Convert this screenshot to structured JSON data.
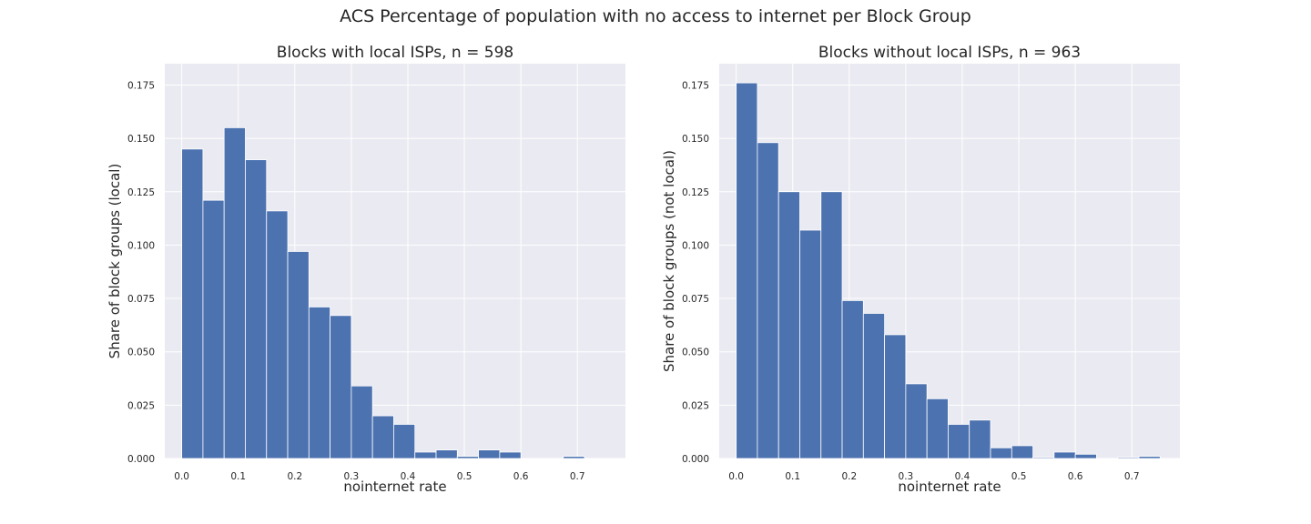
{
  "figure": {
    "suptitle": "ACS Percentage of population with no access to internet per Block Group"
  },
  "chart_data": [
    {
      "type": "bar",
      "title": "Blocks with local ISPs, n = 598",
      "xlabel": "nointernet rate",
      "ylabel": "Share of block groups (local)",
      "bin_width": 0.0375,
      "bin_start": 0.0,
      "values": [
        0.145,
        0.121,
        0.155,
        0.14,
        0.116,
        0.097,
        0.071,
        0.067,
        0.034,
        0.02,
        0.016,
        0.003,
        0.004,
        0.001,
        0.004,
        0.003,
        0.0,
        0.0,
        0.001,
        0.0
      ],
      "xlim": [
        -0.03,
        0.785
      ],
      "ylim": [
        0,
        0.185
      ],
      "xticks": [
        0.0,
        0.1,
        0.2,
        0.3,
        0.4,
        0.5,
        0.6,
        0.7
      ],
      "xtick_labels": [
        "0.0",
        "0.1",
        "0.2",
        "0.3",
        "0.4",
        "0.5",
        "0.6",
        "0.7"
      ],
      "yticks": [
        0.0,
        0.025,
        0.05,
        0.075,
        0.1,
        0.125,
        0.15,
        0.175
      ],
      "ytick_labels": [
        "0.000",
        "0.025",
        "0.050",
        "0.075",
        "0.100",
        "0.125",
        "0.150",
        "0.175"
      ],
      "grid": true,
      "bar_color": "#4c72b0",
      "background": "#eaeaf2"
    },
    {
      "type": "bar",
      "title": "Blocks without local ISPs, n = 963",
      "xlabel": "nointernet rate",
      "ylabel": "Share of block groups (not local)",
      "bin_width": 0.0375,
      "bin_start": 0.0,
      "values": [
        0.176,
        0.148,
        0.125,
        0.107,
        0.125,
        0.074,
        0.068,
        0.058,
        0.035,
        0.028,
        0.016,
        0.018,
        0.005,
        0.006,
        0.0005,
        0.003,
        0.002,
        0.0,
        0.0005,
        0.001
      ],
      "xlim": [
        -0.03,
        0.785
      ],
      "ylim": [
        0,
        0.185
      ],
      "xticks": [
        0.0,
        0.1,
        0.2,
        0.3,
        0.4,
        0.5,
        0.6,
        0.7
      ],
      "xtick_labels": [
        "0.0",
        "0.1",
        "0.2",
        "0.3",
        "0.4",
        "0.5",
        "0.6",
        "0.7"
      ],
      "yticks": [
        0.0,
        0.025,
        0.05,
        0.075,
        0.1,
        0.125,
        0.15,
        0.175
      ],
      "ytick_labels": [
        "0.000",
        "0.025",
        "0.050",
        "0.075",
        "0.100",
        "0.125",
        "0.150",
        "0.175"
      ],
      "grid": true,
      "bar_color": "#4c72b0",
      "background": "#eaeaf2"
    }
  ]
}
